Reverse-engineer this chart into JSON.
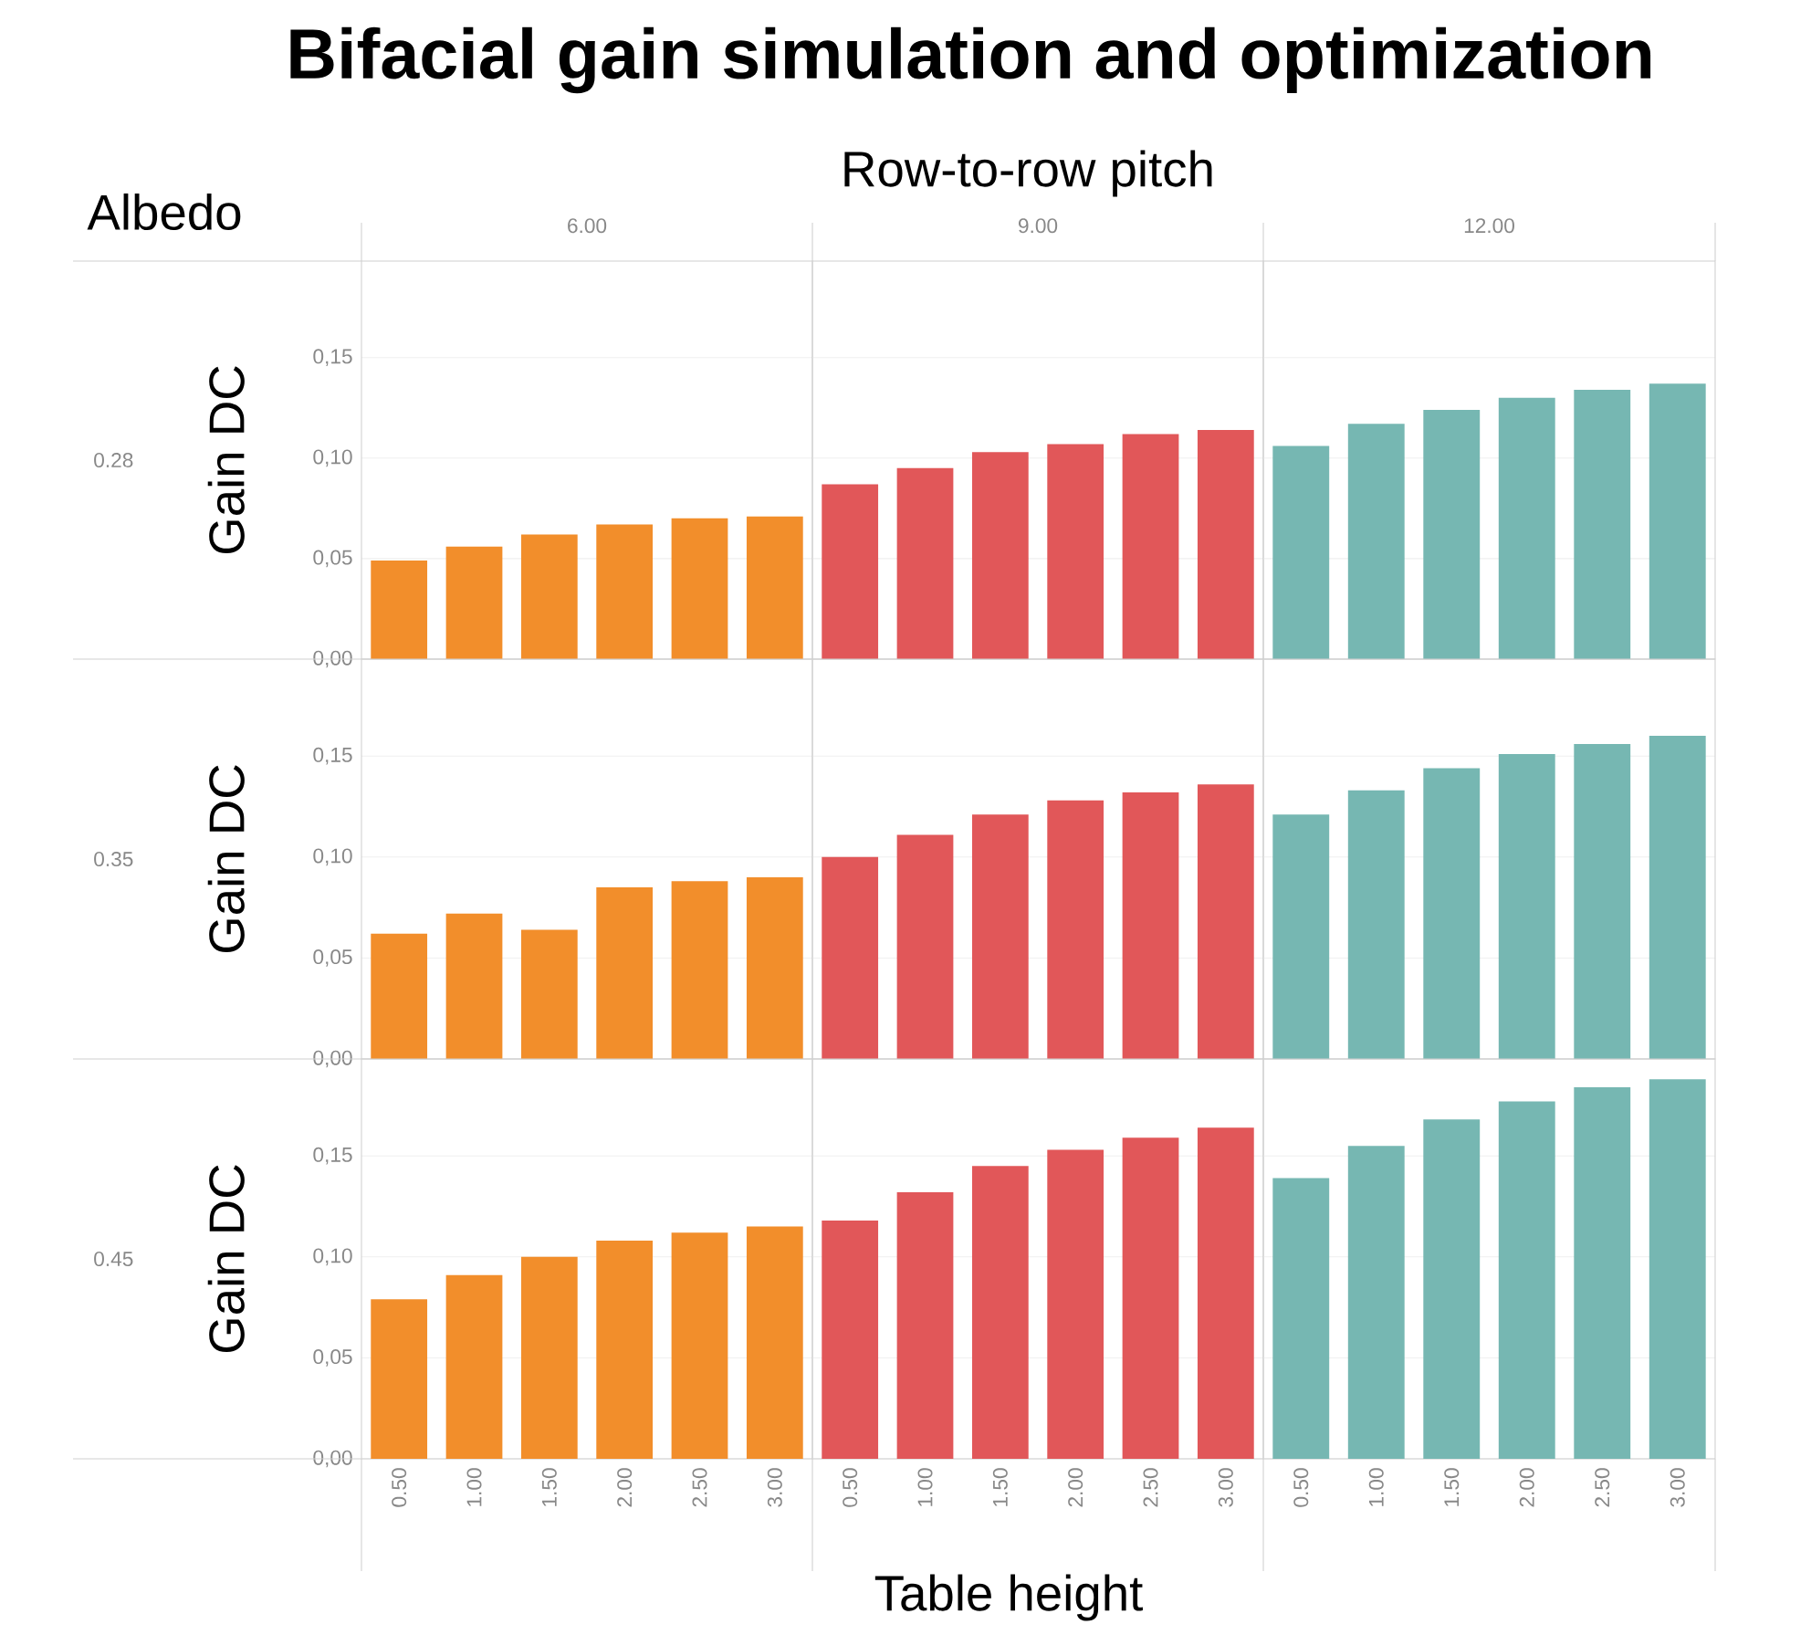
{
  "chart_data": [
    {
      "type": "other",
      "title": "Bifacial gain simulation and optimization",
      "annotations": [
        "Row-to-row pitch",
        "Albedo",
        "Table height"
      ]
    },
    {
      "type": "bar",
      "title": "6.00",
      "ylabel": "Gain DC",
      "annotations": [
        "0.28"
      ],
      "categories": [
        "0.50",
        "1.00",
        "1.50",
        "2.00",
        "2.50",
        "3.00"
      ],
      "values": [
        0.049,
        0.056,
        0.062,
        0.067,
        0.07,
        0.071
      ],
      "color": "#f28e2b",
      "ylim": [
        0,
        0.198
      ],
      "yticks": [
        {
          "value": 0,
          "label": "0,00"
        },
        {
          "value": 0.05,
          "label": "0,05"
        },
        {
          "value": 0.1,
          "label": "0,10"
        },
        {
          "value": 0.15,
          "label": "0,15"
        }
      ],
      "grid": "y",
      "tick_labels": "y"
    },
    {
      "type": "bar",
      "title": "9.00",
      "categories": [
        "0.50",
        "1.00",
        "1.50",
        "2.00",
        "2.50",
        "3.00"
      ],
      "values": [
        0.087,
        0.095,
        0.103,
        0.107,
        0.112,
        0.114
      ],
      "color": "#e15759",
      "ylim": [
        0,
        0.198
      ],
      "yticks": [
        {
          "value": 0,
          "label": null
        },
        {
          "value": 0.05,
          "label": null
        },
        {
          "value": 0.1,
          "label": null
        },
        {
          "value": 0.15,
          "label": null
        }
      ],
      "grid": "y",
      "tick_labels": false
    },
    {
      "type": "bar",
      "title": "12.00",
      "categories": [
        "0.50",
        "1.00",
        "1.50",
        "2.00",
        "2.50",
        "3.00"
      ],
      "values": [
        0.106,
        0.117,
        0.124,
        0.13,
        0.134,
        0.137
      ],
      "color": "#76b7b2",
      "ylim": [
        0,
        0.198
      ],
      "yticks": [
        {
          "value": 0,
          "label": null
        },
        {
          "value": 0.05,
          "label": null
        },
        {
          "value": 0.1,
          "label": null
        },
        {
          "value": 0.15,
          "label": null
        }
      ],
      "grid": "y",
      "tick_labels": false
    },
    {
      "type": "bar",
      "ylabel": "Gain DC",
      "annotations": [
        "0.35"
      ],
      "categories": [
        "0.50",
        "1.00",
        "1.50",
        "2.00",
        "2.50",
        "3.00"
      ],
      "values": [
        0.062,
        0.072,
        0.064,
        0.085,
        0.088,
        0.09
      ],
      "color": "#f28e2b",
      "ylim": [
        0,
        0.198
      ],
      "yticks": [
        {
          "value": 0,
          "label": "0,00"
        },
        {
          "value": 0.05,
          "label": "0,05"
        },
        {
          "value": 0.1,
          "label": "0,10"
        },
        {
          "value": 0.15,
          "label": "0,15"
        }
      ],
      "grid": "y",
      "tick_labels": "y"
    },
    {
      "type": "bar",
      "categories": [
        "0.50",
        "1.00",
        "1.50",
        "2.00",
        "2.50",
        "3.00"
      ],
      "values": [
        0.1,
        0.111,
        0.121,
        0.128,
        0.132,
        0.136
      ],
      "color": "#e15759",
      "ylim": [
        0,
        0.198
      ],
      "yticks": [
        {
          "value": 0,
          "label": null
        },
        {
          "value": 0.05,
          "label": null
        },
        {
          "value": 0.1,
          "label": null
        },
        {
          "value": 0.15,
          "label": null
        }
      ],
      "grid": "y",
      "tick_labels": false
    },
    {
      "type": "bar",
      "categories": [
        "0.50",
        "1.00",
        "1.50",
        "2.00",
        "2.50",
        "3.00"
      ],
      "values": [
        0.121,
        0.133,
        0.144,
        0.151,
        0.156,
        0.16
      ],
      "color": "#76b7b2",
      "ylim": [
        0,
        0.198
      ],
      "yticks": [
        {
          "value": 0,
          "label": null
        },
        {
          "value": 0.05,
          "label": null
        },
        {
          "value": 0.1,
          "label": null
        },
        {
          "value": 0.15,
          "label": null
        }
      ],
      "grid": "y",
      "tick_labels": false
    },
    {
      "type": "bar",
      "ylabel": "Gain DC",
      "annotations": [
        "0.45"
      ],
      "categories": [
        "0.50",
        "1.00",
        "1.50",
        "2.00",
        "2.50",
        "3.00"
      ],
      "values": [
        0.079,
        0.091,
        0.1,
        0.108,
        0.112,
        0.115
      ],
      "color": "#f28e2b",
      "ylim": [
        0,
        0.198
      ],
      "yticks": [
        {
          "value": 0,
          "label": "0,00"
        },
        {
          "value": 0.05,
          "label": "0,05"
        },
        {
          "value": 0.1,
          "label": "0,10"
        },
        {
          "value": 0.15,
          "label": "0,15"
        }
      ],
      "grid": "y"
    },
    {
      "type": "bar",
      "categories": [
        "0.50",
        "1.00",
        "1.50",
        "2.00",
        "2.50",
        "3.00"
      ],
      "values": [
        0.118,
        0.132,
        0.145,
        0.153,
        0.159,
        0.164
      ],
      "color": "#e15759",
      "ylim": [
        0,
        0.198
      ],
      "yticks": [
        {
          "value": 0,
          "label": null
        },
        {
          "value": 0.05,
          "label": null
        },
        {
          "value": 0.1,
          "label": null
        },
        {
          "value": 0.15,
          "label": null
        }
      ],
      "grid": "y",
      "tick_labels": "x"
    },
    {
      "type": "bar",
      "categories": [
        "0.50",
        "1.00",
        "1.50",
        "2.00",
        "2.50",
        "3.00"
      ],
      "values": [
        0.139,
        0.155,
        0.168,
        0.177,
        0.184,
        0.188
      ],
      "color": "#76b7b2",
      "ylim": [
        0,
        0.198
      ],
      "yticks": [
        {
          "value": 0,
          "label": null
        },
        {
          "value": 0.05,
          "label": null
        },
        {
          "value": 0.1,
          "label": null
        },
        {
          "value": 0.15,
          "label": null
        }
      ],
      "grid": "y",
      "tick_labels": "x"
    }
  ]
}
